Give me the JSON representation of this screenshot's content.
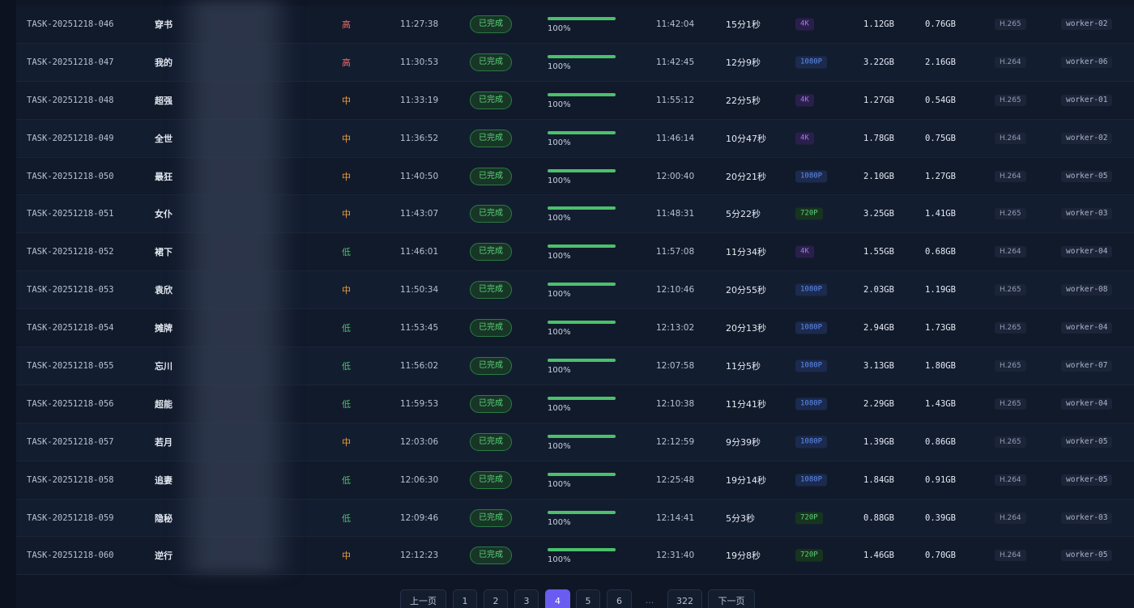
{
  "rows": [
    {
      "id": "TASK-20251218-046",
      "title": "穿书",
      "priority": "高",
      "priority_level": "high",
      "start": "11:27:38",
      "status": "已完成",
      "progress": "100%",
      "progress_value": 1.0,
      "end": "11:42:04",
      "duration": "15分1秒",
      "resolution": "4K",
      "res_class": "4k",
      "size_in": "1.12GB",
      "size_out": "0.76GB",
      "codec": "H.265",
      "worker": "worker-02"
    },
    {
      "id": "TASK-20251218-047",
      "title": "我的",
      "priority": "高",
      "priority_level": "high",
      "start": "11:30:53",
      "status": "已完成",
      "progress": "100%",
      "progress_value": 1.0,
      "end": "11:42:45",
      "duration": "12分9秒",
      "resolution": "1080P",
      "res_class": "1080p",
      "size_in": "3.22GB",
      "size_out": "2.16GB",
      "codec": "H.264",
      "worker": "worker-06"
    },
    {
      "id": "TASK-20251218-048",
      "title": "超强",
      "priority": "中",
      "priority_level": "mid",
      "start": "11:33:19",
      "status": "已完成",
      "progress": "100%",
      "progress_value": 1.0,
      "end": "11:55:12",
      "duration": "22分5秒",
      "resolution": "4K",
      "res_class": "4k",
      "size_in": "1.27GB",
      "size_out": "0.54GB",
      "codec": "H.265",
      "worker": "worker-01"
    },
    {
      "id": "TASK-20251218-049",
      "title": "全世",
      "priority": "中",
      "priority_level": "mid",
      "start": "11:36:52",
      "status": "已完成",
      "progress": "100%",
      "progress_value": 1.0,
      "end": "11:46:14",
      "duration": "10分47秒",
      "resolution": "4K",
      "res_class": "4k",
      "size_in": "1.78GB",
      "size_out": "0.75GB",
      "codec": "H.264",
      "worker": "worker-02"
    },
    {
      "id": "TASK-20251218-050",
      "title": "最狂",
      "priority": "中",
      "priority_level": "mid",
      "start": "11:40:50",
      "status": "已完成",
      "progress": "100%",
      "progress_value": 1.0,
      "end": "12:00:40",
      "duration": "20分21秒",
      "resolution": "1080P",
      "res_class": "1080p",
      "size_in": "2.10GB",
      "size_out": "1.27GB",
      "codec": "H.264",
      "worker": "worker-05"
    },
    {
      "id": "TASK-20251218-051",
      "title": "女仆",
      "priority": "中",
      "priority_level": "mid",
      "start": "11:43:07",
      "status": "已完成",
      "progress": "100%",
      "progress_value": 1.0,
      "end": "11:48:31",
      "duration": "5分22秒",
      "resolution": "720P",
      "res_class": "720p",
      "size_in": "3.25GB",
      "size_out": "1.41GB",
      "codec": "H.265",
      "worker": "worker-03"
    },
    {
      "id": "TASK-20251218-052",
      "title": "裙下",
      "priority": "低",
      "priority_level": "low",
      "start": "11:46:01",
      "status": "已完成",
      "progress": "100%",
      "progress_value": 1.0,
      "end": "11:57:08",
      "duration": "11分34秒",
      "resolution": "4K",
      "res_class": "4k",
      "size_in": "1.55GB",
      "size_out": "0.68GB",
      "codec": "H.264",
      "worker": "worker-04"
    },
    {
      "id": "TASK-20251218-053",
      "title": "袁欣",
      "priority": "中",
      "priority_level": "mid",
      "start": "11:50:34",
      "status": "已完成",
      "progress": "100%",
      "progress_value": 1.0,
      "end": "12:10:46",
      "duration": "20分55秒",
      "resolution": "1080P",
      "res_class": "1080p",
      "size_in": "2.03GB",
      "size_out": "1.19GB",
      "codec": "H.265",
      "worker": "worker-08"
    },
    {
      "id": "TASK-20251218-054",
      "title": "摊牌",
      "priority": "低",
      "priority_level": "low",
      "start": "11:53:45",
      "status": "已完成",
      "progress": "100%",
      "progress_value": 1.0,
      "end": "12:13:02",
      "duration": "20分13秒",
      "resolution": "1080P",
      "res_class": "1080p",
      "size_in": "2.94GB",
      "size_out": "1.73GB",
      "codec": "H.265",
      "worker": "worker-04"
    },
    {
      "id": "TASK-20251218-055",
      "title": "忘川",
      "priority": "低",
      "priority_level": "low",
      "start": "11:56:02",
      "status": "已完成",
      "progress": "100%",
      "progress_value": 1.0,
      "end": "12:07:58",
      "duration": "11分5秒",
      "resolution": "1080P",
      "res_class": "1080p",
      "size_in": "3.13GB",
      "size_out": "1.80GB",
      "codec": "H.265",
      "worker": "worker-07"
    },
    {
      "id": "TASK-20251218-056",
      "title": "超能",
      "priority": "低",
      "priority_level": "low",
      "start": "11:59:53",
      "status": "已完成",
      "progress": "100%",
      "progress_value": 1.0,
      "end": "12:10:38",
      "duration": "11分41秒",
      "resolution": "1080P",
      "res_class": "1080p",
      "size_in": "2.29GB",
      "size_out": "1.43GB",
      "codec": "H.265",
      "worker": "worker-04"
    },
    {
      "id": "TASK-20251218-057",
      "title": "若月",
      "priority": "中",
      "priority_level": "mid",
      "start": "12:03:06",
      "status": "已完成",
      "progress": "100%",
      "progress_value": 1.0,
      "end": "12:12:59",
      "duration": "9分39秒",
      "resolution": "1080P",
      "res_class": "1080p",
      "size_in": "1.39GB",
      "size_out": "0.86GB",
      "codec": "H.265",
      "worker": "worker-05"
    },
    {
      "id": "TASK-20251218-058",
      "title": "追妻",
      "priority": "低",
      "priority_level": "low",
      "start": "12:06:30",
      "status": "已完成",
      "progress": "100%",
      "progress_value": 1.0,
      "end": "12:25:48",
      "duration": "19分14秒",
      "resolution": "1080P",
      "res_class": "1080p",
      "size_in": "1.84GB",
      "size_out": "0.91GB",
      "codec": "H.264",
      "worker": "worker-05"
    },
    {
      "id": "TASK-20251218-059",
      "title": "隐秘",
      "priority": "低",
      "priority_level": "low",
      "start": "12:09:46",
      "status": "已完成",
      "progress": "100%",
      "progress_value": 1.0,
      "end": "12:14:41",
      "duration": "5分3秒",
      "resolution": "720P",
      "res_class": "720p",
      "size_in": "0.88GB",
      "size_out": "0.39GB",
      "codec": "H.264",
      "worker": "worker-03"
    },
    {
      "id": "TASK-20251218-060",
      "title": "逆行",
      "priority": "中",
      "priority_level": "mid",
      "start": "12:12:23",
      "status": "已完成",
      "progress": "100%",
      "progress_value": 1.0,
      "end": "12:31:40",
      "duration": "19分8秒",
      "resolution": "720P",
      "res_class": "720p",
      "size_in": "1.46GB",
      "size_out": "0.70GB",
      "codec": "H.264",
      "worker": "worker-05"
    }
  ],
  "pagination": {
    "prev_label": "上一页",
    "next_label": "下一页",
    "pages": [
      "1",
      "2",
      "3",
      "4",
      "5",
      "6",
      "...",
      "322"
    ],
    "current": "4"
  },
  "colors": {
    "accent": "#6a5cf0",
    "success": "#4cc06b",
    "priority_high": "#f26b6b",
    "priority_mid": "#f0a03c",
    "priority_low": "#4cc06b"
  }
}
